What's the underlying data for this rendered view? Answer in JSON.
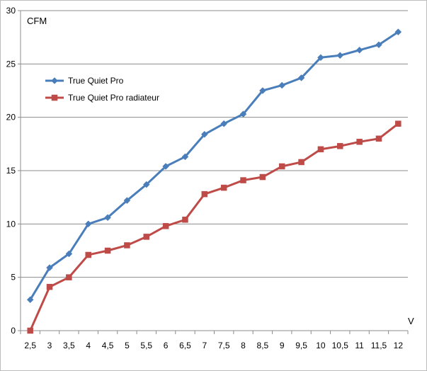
{
  "chart_data": {
    "type": "line",
    "x": [
      "2,5",
      "3",
      "3,5",
      "4",
      "4,5",
      "5",
      "5,5",
      "6",
      "6,5",
      "7",
      "7,5",
      "8",
      "8,5",
      "9",
      "9,5",
      "10",
      "10,5",
      "11",
      "11,5",
      "12"
    ],
    "xlabel": "V",
    "ylabel": "CFM",
    "ylim": [
      0,
      30
    ],
    "yticks": [
      0,
      5,
      10,
      15,
      20,
      25,
      30
    ],
    "grid": "horizontal",
    "legend_position": "upper-left",
    "series": [
      {
        "name": "True Quiet Pro",
        "color": "#4a7ebb",
        "marker": "diamond",
        "values": [
          2.9,
          5.9,
          7.2,
          10.0,
          10.6,
          12.2,
          13.7,
          15.4,
          16.3,
          18.4,
          19.4,
          20.3,
          22.5,
          23.0,
          23.7,
          25.6,
          25.8,
          26.3,
          26.8,
          28.0
        ]
      },
      {
        "name": "True Quiet Pro radiateur",
        "color": "#be4b48",
        "marker": "square",
        "values": [
          0.0,
          4.1,
          5.0,
          7.1,
          7.5,
          8.0,
          8.8,
          9.8,
          10.4,
          12.8,
          13.4,
          14.1,
          14.4,
          15.4,
          15.8,
          17.0,
          17.3,
          17.7,
          18.0,
          19.4
        ]
      }
    ]
  }
}
